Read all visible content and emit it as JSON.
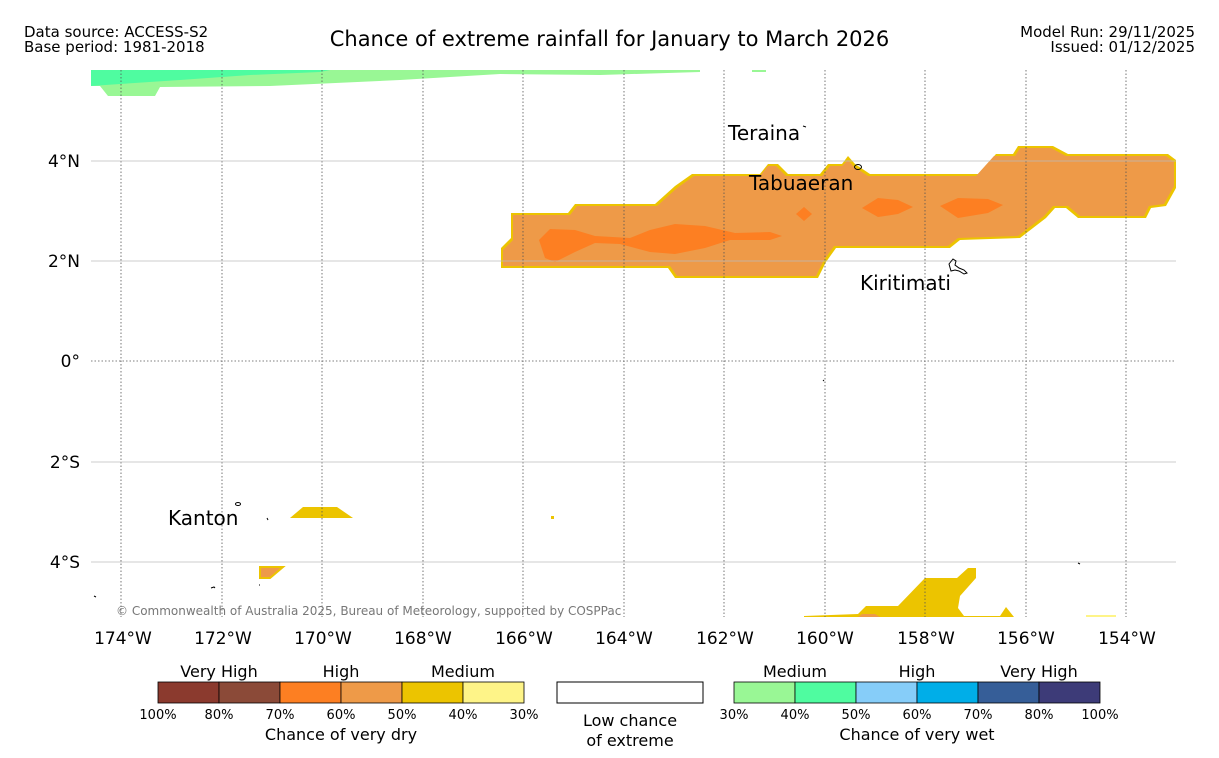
{
  "header": {
    "source_line": "Data source: ACCESS-S2",
    "base_line": "Base period: 1981-2018",
    "title": "Chance of extreme rainfall for January to March 2026",
    "model_run": "Model Run: 29/11/2025",
    "issued": "Issued: 01/12/2025"
  },
  "map": {
    "lon_ticks": [
      "174°W",
      "172°W",
      "170°W",
      "168°W",
      "166°W",
      "164°W",
      "162°W",
      "160°W",
      "158°W",
      "156°W",
      "154°W"
    ],
    "lat_ticks": [
      "4°N",
      "2°N",
      "0°",
      "2°S",
      "4°S"
    ],
    "places": {
      "teraina": "Teraina",
      "tabuaeran": "Tabuaeran",
      "kiritimati": "Kiritimati",
      "kanton": "Kanton"
    },
    "copyright": "© Commonwealth of Australia 2025, Bureau of Meteorology, supported by COSPPac"
  },
  "legend": {
    "dry": {
      "group_labels": [
        "Very High",
        "High",
        "Medium"
      ],
      "colors": [
        "#8b3a2e",
        "#8b4a38",
        "#fd7f22",
        "#ee9a48",
        "#ecc400",
        "#fef488"
      ],
      "ticks": [
        "100%",
        "80%",
        "70%",
        "60%",
        "50%",
        "40%",
        "30%"
      ],
      "title": "Chance of very dry"
    },
    "low": {
      "line1": "Low chance",
      "line2": "of extreme"
    },
    "wet": {
      "group_labels": [
        "Medium",
        "High",
        "Very High"
      ],
      "colors": [
        "#99f795",
        "#4ffca0",
        "#86cdf9",
        "#00aee8",
        "#365e98",
        "#3d3b78"
      ],
      "ticks": [
        "30%",
        "40%",
        "50%",
        "60%",
        "70%",
        "80%",
        "100%"
      ],
      "title": "Chance of very wet"
    }
  }
}
